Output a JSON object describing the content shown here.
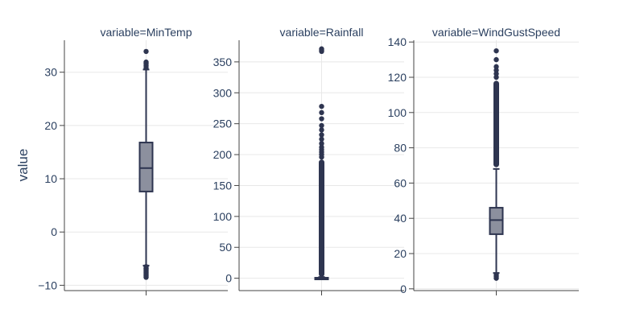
{
  "chart_data": {
    "type": "box",
    "ylabel": "value",
    "style": {
      "box_fill": "#8c909e",
      "line_color": "#2e3550",
      "grid_color": "#e8e8e8",
      "axis_color": "#444444",
      "background": "#ffffff"
    },
    "panels": [
      {
        "title": "variable=MinTemp",
        "ylim": [
          -11,
          36
        ],
        "yticks": [
          -10,
          0,
          10,
          20,
          30
        ],
        "ytick_labels": [
          "−10",
          "0",
          "10",
          "20",
          "30"
        ],
        "box": {
          "q1": 7.6,
          "median": 12.0,
          "q3": 16.8,
          "lower_fence": -6.3,
          "upper_fence": 30.5
        },
        "outliers": [
          -6.5,
          -6.8,
          -7.0,
          -7.3,
          -7.6,
          -7.9,
          -8.2,
          -8.5,
          30.8,
          31.2,
          31.6,
          31.9,
          33.9
        ]
      },
      {
        "title": "variable=Rainfall",
        "ylim": [
          -20,
          385
        ],
        "yticks": [
          0,
          50,
          100,
          150,
          200,
          250,
          300,
          350
        ],
        "ytick_labels": [
          "0",
          "50",
          "100",
          "150",
          "200",
          "250",
          "300",
          "350"
        ],
        "box": {
          "q1": 0.0,
          "median": 0.0,
          "q3": 0.8,
          "lower_fence": 0.0,
          "upper_fence": 2.0
        },
        "outlier_band": [
          2.2,
          192
        ],
        "outliers": [
          196,
          200,
          204,
          208,
          212,
          218,
          225,
          232,
          240,
          247,
          258,
          268,
          278,
          367,
          369,
          371
        ]
      },
      {
        "title": "variable=WindGustSpeed",
        "ylim": [
          -1,
          141
        ],
        "yticks": [
          0,
          20,
          40,
          60,
          80,
          100,
          120,
          140
        ],
        "ytick_labels": [
          "0",
          "20",
          "40",
          "60",
          "80",
          "100",
          "120",
          "140"
        ],
        "box": {
          "q1": 31,
          "median": 39,
          "q3": 46,
          "lower_fence": 9,
          "upper_fence": 68
        },
        "outlier_band": [
          69,
          118
        ],
        "outliers": [
          6,
          7,
          8,
          120,
          122,
          124,
          126,
          130,
          135
        ]
      }
    ]
  }
}
